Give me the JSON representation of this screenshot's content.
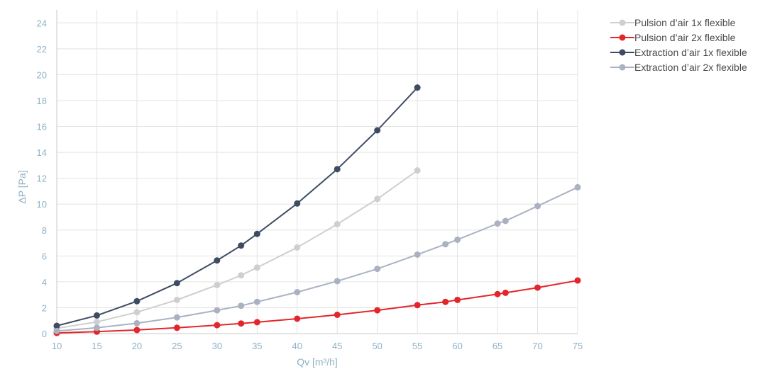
{
  "chart_data": {
    "type": "line",
    "xlabel": "Qv [m³/h]",
    "ylabel": "ΔP [Pa]",
    "xlim": [
      10,
      75
    ],
    "ylim": [
      0,
      25
    ],
    "x_ticks": [
      10,
      15,
      20,
      25,
      30,
      35,
      40,
      45,
      50,
      55,
      60,
      65,
      70,
      75
    ],
    "y_ticks": [
      0,
      2,
      4,
      6,
      8,
      10,
      12,
      14,
      16,
      18,
      20,
      22,
      24
    ],
    "grid": true,
    "legend_position": "top-right",
    "series": [
      {
        "name": "Pulsion d’air 1x flexible",
        "color": "#cfcfcf",
        "points": [
          [
            10,
            0.4
          ],
          [
            15,
            0.9
          ],
          [
            20,
            1.65
          ],
          [
            25,
            2.6
          ],
          [
            30,
            3.75
          ],
          [
            33,
            4.5
          ],
          [
            35,
            5.1
          ],
          [
            40,
            6.65
          ],
          [
            45,
            8.45
          ],
          [
            50,
            10.4
          ],
          [
            55,
            12.6
          ]
        ]
      },
      {
        "name": "Pulsion d’air 2x flexible",
        "color": "#e3262b",
        "points": [
          [
            10,
            0.05
          ],
          [
            15,
            0.15
          ],
          [
            20,
            0.28
          ],
          [
            25,
            0.45
          ],
          [
            30,
            0.65
          ],
          [
            33,
            0.78
          ],
          [
            35,
            0.88
          ],
          [
            40,
            1.15
          ],
          [
            45,
            1.45
          ],
          [
            50,
            1.8
          ],
          [
            55,
            2.2
          ],
          [
            58.5,
            2.45
          ],
          [
            60,
            2.6
          ],
          [
            65,
            3.05
          ],
          [
            66,
            3.15
          ],
          [
            70,
            3.55
          ],
          [
            75,
            4.1
          ]
        ]
      },
      {
        "name": "Extraction d’air 1x flexible",
        "color": "#3e4c63",
        "points": [
          [
            10,
            0.6
          ],
          [
            15,
            1.4
          ],
          [
            20,
            2.5
          ],
          [
            25,
            3.9
          ],
          [
            30,
            5.65
          ],
          [
            33,
            6.8
          ],
          [
            35,
            7.7
          ],
          [
            40,
            10.05
          ],
          [
            45,
            12.7
          ],
          [
            50,
            15.7
          ],
          [
            55,
            19.0
          ]
        ]
      },
      {
        "name": "Extraction d’air 2x flexible",
        "color": "#aab2c2",
        "points": [
          [
            10,
            0.2
          ],
          [
            15,
            0.45
          ],
          [
            20,
            0.8
          ],
          [
            25,
            1.25
          ],
          [
            30,
            1.8
          ],
          [
            33,
            2.15
          ],
          [
            35,
            2.45
          ],
          [
            40,
            3.2
          ],
          [
            45,
            4.05
          ],
          [
            50,
            5.0
          ],
          [
            55,
            6.1
          ],
          [
            58.5,
            6.9
          ],
          [
            60,
            7.25
          ],
          [
            65,
            8.5
          ],
          [
            66,
            8.7
          ],
          [
            70,
            9.85
          ],
          [
            75,
            11.3
          ]
        ]
      }
    ]
  }
}
